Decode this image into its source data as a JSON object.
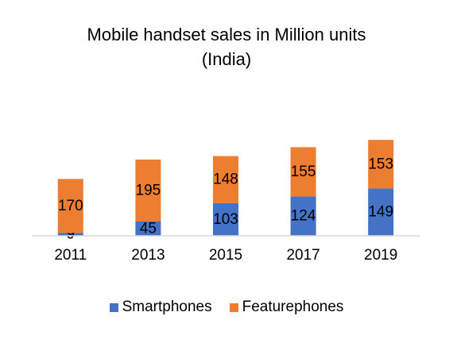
{
  "chart_data": {
    "type": "bar",
    "stacked": true,
    "title": "Mobile handset sales in Million units",
    "subtitle": "(India)",
    "categories": [
      "2011",
      "2013",
      "2015",
      "2017",
      "2019"
    ],
    "series": [
      {
        "name": "Smartphones",
        "values": [
          9,
          45,
          103,
          124,
          149
        ],
        "color": "#4472C4"
      },
      {
        "name": "Featurephones",
        "values": [
          170,
          195,
          148,
          155,
          153
        ],
        "color": "#ED7D31"
      }
    ],
    "xlabel": "",
    "ylabel": "",
    "ylim": [
      0,
      320
    ],
    "grid": false,
    "legend_position": "bottom"
  }
}
